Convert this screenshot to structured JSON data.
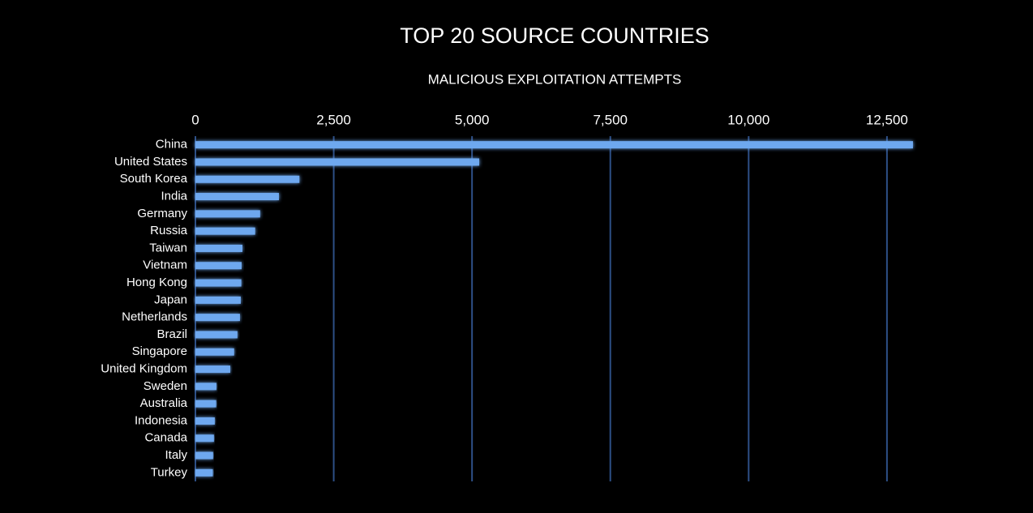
{
  "chart_data": {
    "type": "bar",
    "orientation": "horizontal",
    "title": "TOP 20 SOURCE COUNTRIES",
    "subtitle": "MALICIOUS EXPLOITATION ATTEMPTS",
    "categories": [
      "China",
      "United States",
      "South Korea",
      "India",
      "Germany",
      "Russia",
      "Taiwan",
      "Vietnam",
      "Hong Kong",
      "Japan",
      "Netherlands",
      "Brazil",
      "Singapore",
      "United Kingdom",
      "Sweden",
      "Australia",
      "Indonesia",
      "Canada",
      "Italy",
      "Turkey"
    ],
    "values": [
      12970,
      5130,
      1880,
      1510,
      1170,
      1080,
      850,
      835,
      830,
      820,
      805,
      760,
      700,
      630,
      380,
      375,
      350,
      335,
      320,
      315
    ],
    "color": "#6ea8ef",
    "xlim": [
      0,
      13000
    ],
    "xticks": [
      0,
      {
        "value": 2500,
        "label": "2,500"
      },
      {
        "value": 5000,
        "label": "5,000"
      },
      {
        "value": 7500,
        "label": "7,500"
      },
      {
        "value": 10000,
        "label": "10,000"
      },
      {
        "value": 12500,
        "label": "12,500"
      }
    ],
    "grid": true
  }
}
